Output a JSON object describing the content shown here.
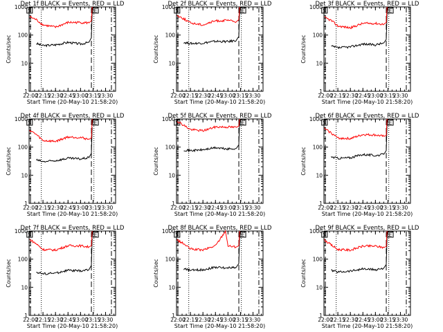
{
  "page": {
    "background": "#ffffff",
    "axis_color": "#000000",
    "events_color": "#000000",
    "lld_color": "#ff0000"
  },
  "panel_common": {
    "ylabel": "Counts/sec",
    "xlabel": "Start Time (20-May-10 21:58:20)",
    "x_ticks": [
      "22:00",
      "22:15",
      "22:30",
      "22:45",
      "23:00",
      "23:15",
      "23:30"
    ],
    "y_ticks": [
      "1",
      "10",
      "100",
      "1000"
    ],
    "ylim": [
      1,
      1000
    ],
    "y_scale": "log",
    "xlim": [
      "21:58:20",
      "23:42:00"
    ],
    "markers": [
      {
        "text": "S",
        "time": "21:59"
      },
      {
        "text": "E",
        "time": "23:18"
      }
    ],
    "vlines": [
      {
        "style": "long-dash",
        "time": "22:00"
      },
      {
        "style": "dotted",
        "time": "22:13"
      },
      {
        "style": "long-dash",
        "time": "23:13"
      },
      {
        "style": "dotted",
        "time": "23:16"
      },
      {
        "style": "dash-dot",
        "time": "23:37"
      }
    ]
  },
  "chart_data": [
    {
      "type": "line",
      "title": "Det 1f BLACK = Events, RED = LLD",
      "series": [
        {
          "name": "Events",
          "x": [
            "22:07",
            "22:15",
            "22:30",
            "22:45",
            "23:00",
            "23:10",
            "23:13",
            "23:14"
          ],
          "values": [
            50,
            42,
            45,
            55,
            48,
            55,
            80,
            700
          ]
        },
        {
          "name": "LLD",
          "x": [
            "21:59",
            "22:07",
            "22:15",
            "22:30",
            "22:45",
            "23:00",
            "23:10",
            "23:13",
            "23:14"
          ],
          "values": [
            450,
            350,
            230,
            190,
            280,
            280,
            270,
            320,
            1000
          ]
        }
      ]
    },
    {
      "type": "line",
      "title": "Det 2f BLACK = Events, RED = LLD",
      "series": [
        {
          "name": "Events",
          "x": [
            "22:07",
            "22:15",
            "22:30",
            "22:45",
            "23:00",
            "23:10",
            "23:13",
            "23:14"
          ],
          "values": [
            55,
            50,
            52,
            60,
            58,
            65,
            90,
            800
          ]
        },
        {
          "name": "LLD",
          "x": [
            "21:59",
            "22:07",
            "22:15",
            "22:30",
            "22:45",
            "23:00",
            "23:10",
            "23:13",
            "23:14"
          ],
          "values": [
            500,
            380,
            270,
            230,
            320,
            330,
            300,
            350,
            1000
          ]
        }
      ]
    },
    {
      "type": "line",
      "title": "Det 3f BLACK = Events, RED = LLD",
      "series": [
        {
          "name": "Events",
          "x": [
            "22:07",
            "22:15",
            "22:30",
            "22:45",
            "23:00",
            "23:10",
            "23:13",
            "23:14"
          ],
          "values": [
            40,
            35,
            38,
            48,
            45,
            52,
            70,
            600
          ]
        },
        {
          "name": "LLD",
          "x": [
            "21:59",
            "22:07",
            "22:15",
            "22:30",
            "22:45",
            "23:00",
            "23:10",
            "23:13",
            "23:14"
          ],
          "values": [
            420,
            330,
            210,
            180,
            260,
            260,
            240,
            280,
            1000
          ]
        }
      ]
    },
    {
      "type": "line",
      "title": "Det 4f BLACK = Events, RED = LLD",
      "series": [
        {
          "name": "Events",
          "x": [
            "22:07",
            "22:15",
            "22:30",
            "22:45",
            "23:00",
            "23:10",
            "23:13",
            "23:14"
          ],
          "values": [
            35,
            30,
            33,
            40,
            38,
            42,
            60,
            500
          ]
        },
        {
          "name": "LLD",
          "x": [
            "21:59",
            "22:07",
            "22:15",
            "22:30",
            "22:45",
            "23:00",
            "23:10",
            "23:13",
            "23:14"
          ],
          "values": [
            400,
            280,
            170,
            160,
            230,
            220,
            190,
            210,
            1000
          ]
        }
      ]
    },
    {
      "type": "line",
      "title": "Det 5f BLACK = Events, RED = LLD",
      "series": [
        {
          "name": "Events",
          "x": [
            "22:07",
            "22:15",
            "22:30",
            "22:45",
            "23:00",
            "23:10",
            "23:13",
            "23:14"
          ],
          "values": [
            80,
            75,
            80,
            95,
            85,
            90,
            120,
            900
          ]
        },
        {
          "name": "LLD",
          "x": [
            "21:59",
            "22:07",
            "22:15",
            "22:30",
            "22:45",
            "23:00",
            "23:10",
            "23:13",
            "23:14"
          ],
          "values": [
            850,
            600,
            420,
            380,
            520,
            520,
            500,
            560,
            1000
          ]
        }
      ]
    },
    {
      "type": "line",
      "title": "Det 6f BLACK = Events, RED = LLD",
      "series": [
        {
          "name": "Events",
          "x": [
            "22:07",
            "22:15",
            "22:30",
            "22:45",
            "23:00",
            "23:10",
            "23:13",
            "23:14"
          ],
          "values": [
            45,
            40,
            42,
            55,
            50,
            55,
            75,
            650
          ]
        },
        {
          "name": "LLD",
          "x": [
            "21:59",
            "22:07",
            "22:15",
            "22:30",
            "22:45",
            "23:00",
            "23:10",
            "23:13",
            "23:14"
          ],
          "values": [
            450,
            320,
            210,
            200,
            280,
            270,
            240,
            260,
            1000
          ]
        }
      ]
    },
    {
      "type": "line",
      "title": "Det 7f BLACK = Events, RED = LLD",
      "series": [
        {
          "name": "Events",
          "x": [
            "22:07",
            "22:15",
            "22:30",
            "22:45",
            "23:00",
            "23:10",
            "23:13",
            "23:14"
          ],
          "values": [
            35,
            30,
            32,
            40,
            38,
            42,
            60,
            550
          ]
        },
        {
          "name": "LLD",
          "x": [
            "21:59",
            "22:07",
            "22:15",
            "22:30",
            "22:45",
            "23:00",
            "23:10",
            "23:13",
            "23:14"
          ],
          "values": [
            500,
            350,
            220,
            210,
            300,
            300,
            270,
            300,
            1000
          ]
        }
      ]
    },
    {
      "type": "line",
      "title": "Det 8f BLACK = Events, RED = LLD",
      "series": [
        {
          "name": "Events",
          "x": [
            "22:07",
            "22:15",
            "22:30",
            "22:45",
            "22:57",
            "23:00",
            "23:10",
            "23:13",
            "23:14"
          ],
          "values": [
            45,
            40,
            42,
            52,
            48,
            50,
            52,
            70,
            700
          ]
        },
        {
          "name": "LLD",
          "x": [
            "21:59",
            "22:07",
            "22:15",
            "22:30",
            "22:45",
            "22:57",
            "23:00",
            "23:10",
            "23:13",
            "23:14"
          ],
          "values": [
            480,
            350,
            230,
            210,
            300,
            1000,
            300,
            270,
            300,
            1000
          ]
        }
      ]
    },
    {
      "type": "line",
      "title": "Det 9f BLACK = Events, RED = LLD",
      "series": [
        {
          "name": "Events",
          "x": [
            "22:07",
            "22:15",
            "22:30",
            "22:45",
            "23:00",
            "23:10",
            "23:13",
            "23:14"
          ],
          "values": [
            40,
            35,
            38,
            45,
            42,
            48,
            65,
            600
          ]
        },
        {
          "name": "LLD",
          "x": [
            "21:59",
            "22:07",
            "22:15",
            "22:30",
            "22:45",
            "23:00",
            "23:10",
            "23:13",
            "23:14"
          ],
          "values": [
            480,
            320,
            220,
            210,
            290,
            290,
            260,
            280,
            1000
          ]
        }
      ]
    }
  ]
}
